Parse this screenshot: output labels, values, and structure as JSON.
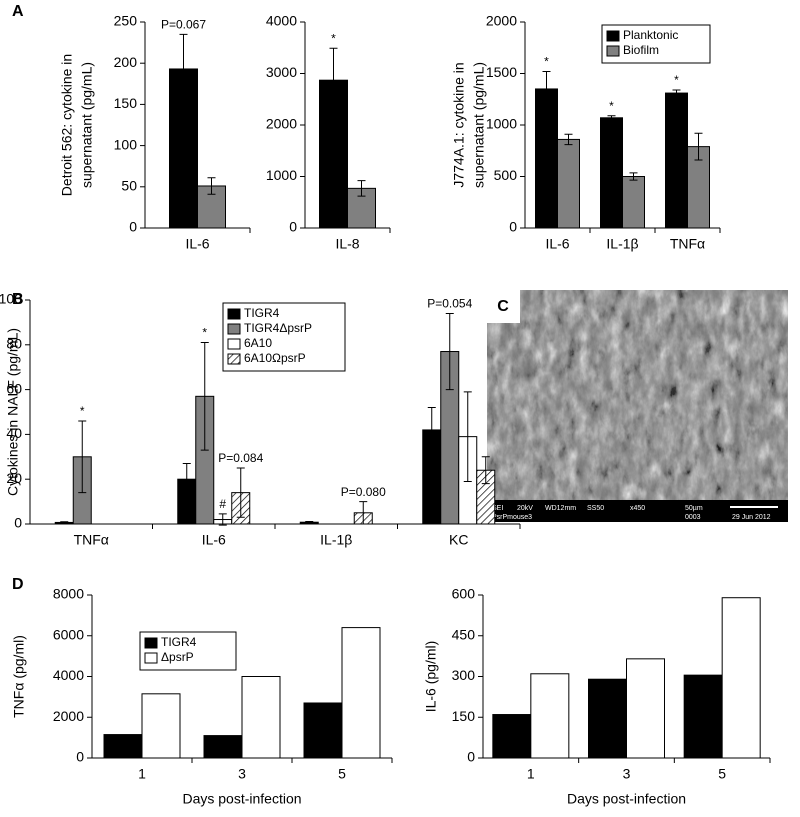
{
  "chart_data": [
    {
      "type": "bar",
      "panel": "A",
      "ylabel": [
        "Detroit 562: cytokine in",
        "supernatant (pg/mL)"
      ],
      "categories": [
        "IL-6"
      ],
      "series": [
        {
          "color": "#000000",
          "values": [
            193
          ],
          "errors": [
            42
          ],
          "annotations": [
            "P=0.067"
          ]
        },
        {
          "color": "#808080",
          "values": [
            51
          ],
          "errors": [
            10
          ],
          "annotations": [
            null
          ]
        }
      ],
      "ylim": [
        0,
        250
      ],
      "yticks": [
        0,
        50,
        100,
        150,
        200,
        250
      ]
    },
    {
      "type": "bar",
      "categories": [
        "IL-8"
      ],
      "series": [
        {
          "color": "#000000",
          "values": [
            2870
          ],
          "errors": [
            620
          ],
          "annotations": [
            "*"
          ]
        },
        {
          "color": "#808080",
          "values": [
            770
          ],
          "errors": [
            150
          ],
          "annotations": [
            null
          ]
        }
      ],
      "ylim": [
        0,
        4000
      ],
      "yticks": [
        0,
        1000,
        2000,
        3000,
        4000
      ]
    },
    {
      "type": "bar",
      "ylabel": [
        "J774A.1: cytokine in",
        "supernatant (pg/mL)"
      ],
      "categories": [
        "IL-6",
        "IL-1β",
        "TNFα"
      ],
      "series": [
        {
          "name": "Planktonic",
          "color": "#000000",
          "values": [
            1350,
            1070,
            1310
          ],
          "errors": [
            170,
            20,
            30
          ],
          "annotations": [
            "*",
            "*",
            "*"
          ]
        },
        {
          "name": "Biofilm",
          "color": "#808080",
          "values": [
            860,
            500,
            790
          ],
          "errors": [
            50,
            35,
            130
          ],
          "annotations": [
            null,
            null,
            null
          ]
        }
      ],
      "ylim": [
        0,
        2000
      ],
      "yticks": [
        0,
        500,
        1000,
        1500,
        2000
      ],
      "legend": "upper-right"
    },
    {
      "type": "bar",
      "panel": "B",
      "ylabel": [
        "Cytokines in NALF (pg/mL)"
      ],
      "categories": [
        "TNFα",
        "IL-6",
        "IL-1β",
        "KC"
      ],
      "series": [
        {
          "name": "TIGR4",
          "color": "#000000",
          "values": [
            0.7,
            20,
            0.8,
            42
          ],
          "errors": [
            0.3,
            7,
            0.3,
            10
          ],
          "annotations": [
            null,
            null,
            null,
            null
          ]
        },
        {
          "name": "TIGR4ΔpsrP",
          "color": "#808080",
          "values": [
            30,
            57,
            0,
            77
          ],
          "errors": [
            16,
            24,
            0,
            17
          ],
          "annotations": [
            "*",
            "*",
            null,
            "P=0.054"
          ]
        },
        {
          "name": "6A10",
          "color": "#ffffff",
          "values": [
            0,
            2,
            0,
            39
          ],
          "errors": [
            0,
            2.5,
            0,
            20
          ],
          "annotations": [
            null,
            "#",
            null,
            null
          ]
        },
        {
          "name": "6A10ΩpsrP",
          "color": "#ffffff",
          "hatch": true,
          "values": [
            0,
            14,
            5,
            24
          ],
          "errors": [
            0,
            11,
            5,
            6
          ],
          "annotations": [
            null,
            "P=0.084",
            "P=0.080",
            null
          ]
        }
      ],
      "ylim": [
        0,
        100
      ],
      "yticks": [
        0,
        20,
        40,
        60,
        80,
        100
      ],
      "legend": "upper-center"
    },
    {
      "type": "bar",
      "panel": "D",
      "ylabel": [
        "TNFα (pg/ml)"
      ],
      "xlabel": "Days post-infection",
      "categories": [
        "1",
        "3",
        "5"
      ],
      "series": [
        {
          "name": "TIGR4",
          "color": "#000000",
          "values": [
            1150,
            1100,
            2700
          ]
        },
        {
          "name": "ΔpsrP",
          "color": "#ffffff",
          "values": [
            3150,
            4000,
            6400
          ]
        }
      ],
      "ylim": [
        0,
        8000
      ],
      "yticks": [
        0,
        2000,
        4000,
        6000,
        8000
      ],
      "legend": "upper-left"
    },
    {
      "type": "bar",
      "ylabel": [
        "IL-6 (pg/ml)"
      ],
      "xlabel": "Days post-infection",
      "categories": [
        "1",
        "3",
        "5"
      ],
      "series": [
        {
          "color": "#000000",
          "values": [
            160,
            290,
            305
          ]
        },
        {
          "color": "#ffffff",
          "values": [
            310,
            365,
            590
          ]
        }
      ],
      "ylim": [
        0,
        600
      ],
      "yticks": [
        0,
        150,
        300,
        450,
        600
      ]
    }
  ],
  "micrograph": {
    "panel": "C",
    "caption": [
      "SEI",
      "20kV",
      "WD12mm",
      "SS50",
      "x450",
      "50µm",
      "0003",
      "29 Jun 2012",
      "PsrPmouse3"
    ]
  }
}
